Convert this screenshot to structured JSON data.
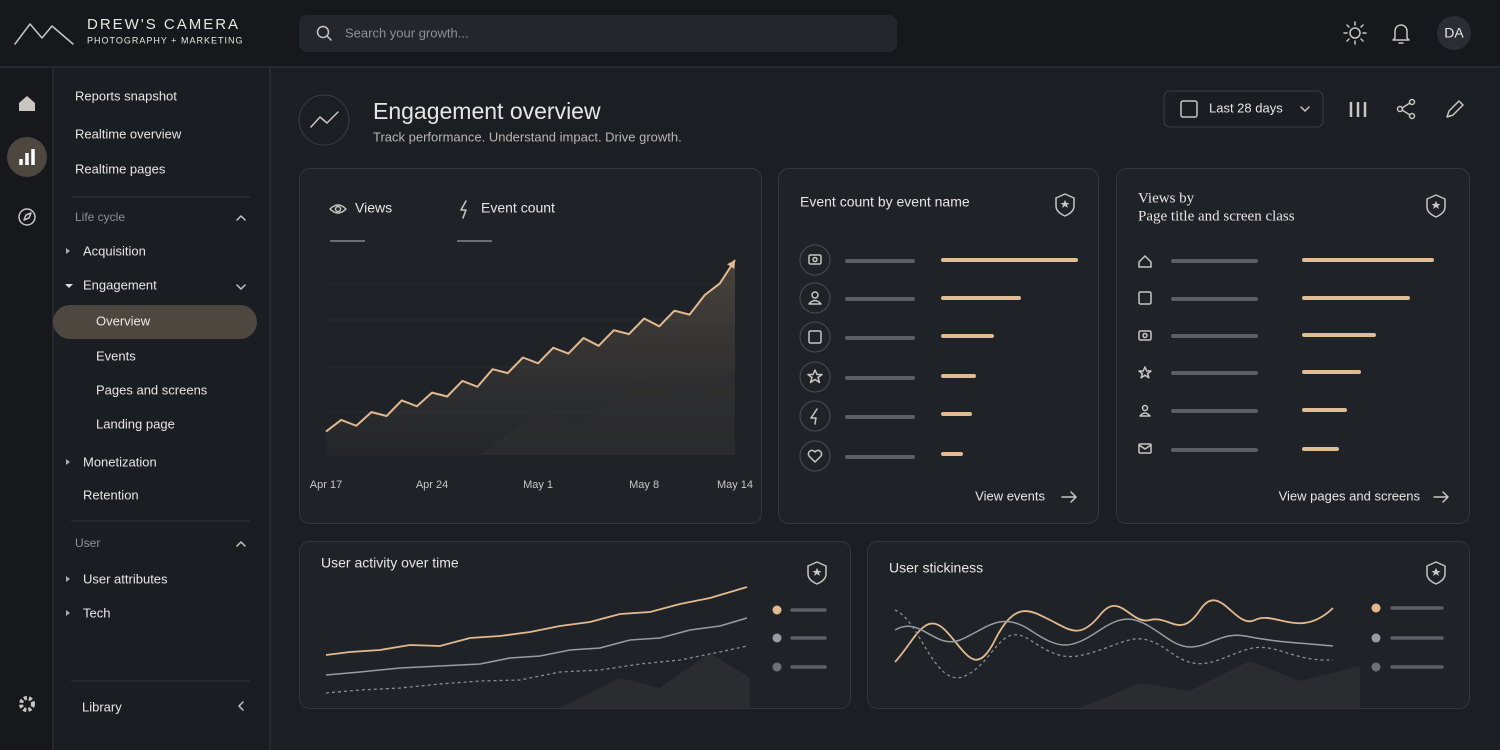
{
  "header": {
    "brand": "DREW'S CAMERA",
    "tagline": "PHOTOGRAPHY + MARKETING",
    "search_placeholder": "Search your growth...",
    "avatar": "DA"
  },
  "nav": {
    "top": [
      "Reports snapshot",
      "Realtime overview",
      "Realtime pages"
    ],
    "life_cycle": {
      "label": "Life cycle",
      "items": [
        "Acquisition",
        "Engagement"
      ],
      "engagement_items": [
        "Overview",
        "Events",
        "Pages and screens",
        "Landing page"
      ],
      "more": [
        "Monetization",
        "Retention"
      ]
    },
    "user": {
      "label": "User",
      "items": [
        "User attributes",
        "Tech"
      ]
    },
    "library": "Library"
  },
  "page": {
    "title": "Engagement overview",
    "subtitle": "Track performance. Understand impact. Drive growth.",
    "date_range": "Last 28 days"
  },
  "cards": {
    "events": {
      "title": "Event count by event name",
      "link": "View events"
    },
    "views": {
      "title_line1": "Views by",
      "title_line2": "Page title and screen class",
      "link": "View pages and screens"
    },
    "activity": {
      "title": "User activity over time"
    },
    "stickiness": {
      "title": "User stickiness"
    }
  },
  "chart_data": {
    "type": "line",
    "tabs": [
      "Views",
      "Event count"
    ],
    "categories": [
      "Apr 17",
      null,
      null,
      null,
      null,
      null,
      null,
      "Apr 24",
      null,
      null,
      null,
      null,
      null,
      null,
      "May 1",
      null,
      null,
      null,
      null,
      null,
      null,
      "May 8",
      null,
      null,
      null,
      null,
      null,
      "May 14"
    ],
    "series": [
      {
        "name": "Views",
        "color": "#e3b98f",
        "values": [
          12,
          18,
          15,
          22,
          20,
          28,
          25,
          32,
          30,
          38,
          35,
          44,
          42,
          50,
          47,
          55,
          52,
          60,
          56,
          64,
          62,
          70,
          66,
          74,
          72,
          82,
          88,
          100
        ]
      }
    ],
    "ylim": [
      0,
      100
    ]
  }
}
